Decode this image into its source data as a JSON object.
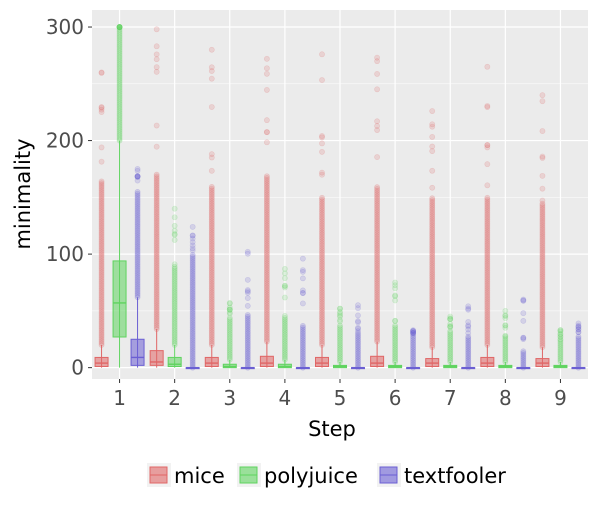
{
  "chart_data": {
    "type": "boxplot",
    "xlabel": "Step",
    "ylabel": "minimality",
    "ylim": [
      -10,
      315
    ],
    "yticks": [
      0,
      100,
      200,
      300
    ],
    "categories": [
      "1",
      "2",
      "3",
      "4",
      "5",
      "6",
      "7",
      "8",
      "9"
    ],
    "grid": true,
    "legend_position": "bottom",
    "colors": {
      "mice": "#e06666",
      "polyjuice": "#5fd35f",
      "textfooler": "#6b5fd3",
      "panel": "#ebebeb",
      "grid": "#ffffff"
    },
    "series": [
      {
        "name": "mice",
        "boxes": [
          {
            "q1": 1,
            "median": 4,
            "q3": 9,
            "whisker_low": 0,
            "whisker_high": 20,
            "outlier_max": 260,
            "dense_max": 165
          },
          {
            "q1": 2,
            "median": 5,
            "q3": 15,
            "whisker_low": 0,
            "whisker_high": 34,
            "outlier_max": 298,
            "dense_max": 170
          },
          {
            "q1": 1,
            "median": 4,
            "q3": 9,
            "whisker_low": 0,
            "whisker_high": 20,
            "outlier_max": 280,
            "dense_max": 160
          },
          {
            "q1": 1,
            "median": 4,
            "q3": 10,
            "whisker_low": 0,
            "whisker_high": 23,
            "outlier_max": 272,
            "dense_max": 170
          },
          {
            "q1": 1,
            "median": 4,
            "q3": 9,
            "whisker_low": 0,
            "whisker_high": 20,
            "outlier_max": 276,
            "dense_max": 150
          },
          {
            "q1": 1,
            "median": 4,
            "q3": 10,
            "whisker_low": 0,
            "whisker_high": 23,
            "outlier_max": 273,
            "dense_max": 160
          },
          {
            "q1": 1,
            "median": 4,
            "q3": 8,
            "whisker_low": 0,
            "whisker_high": 18,
            "outlier_max": 226,
            "dense_max": 150
          },
          {
            "q1": 1,
            "median": 4,
            "q3": 9,
            "whisker_low": 0,
            "whisker_high": 20,
            "outlier_max": 265,
            "dense_max": 150
          },
          {
            "q1": 1,
            "median": 4,
            "q3": 8,
            "whisker_low": 0,
            "whisker_high": 18,
            "outlier_max": 240,
            "dense_max": 145
          }
        ]
      },
      {
        "name": "polyjuice",
        "boxes": [
          {
            "q1": 27,
            "median": 57,
            "q3": 94,
            "whisker_low": 0,
            "whisker_high": 200,
            "outlier_max": 300,
            "dense_max": 300
          },
          {
            "q1": 1,
            "median": 3,
            "q3": 9,
            "whisker_low": 0,
            "whisker_high": 20,
            "outlier_max": 140,
            "dense_max": 90
          },
          {
            "q1": 0,
            "median": 1,
            "q3": 3,
            "whisker_low": 0,
            "whisker_high": 7,
            "outlier_max": 57,
            "dense_max": 45
          },
          {
            "q1": 0,
            "median": 1,
            "q3": 3,
            "whisker_low": 0,
            "whisker_high": 7,
            "outlier_max": 87,
            "dense_max": 45
          },
          {
            "q1": 0,
            "median": 1,
            "q3": 2,
            "whisker_low": 0,
            "whisker_high": 5,
            "outlier_max": 52,
            "dense_max": 38
          },
          {
            "q1": 0,
            "median": 1,
            "q3": 2,
            "whisker_low": 0,
            "whisker_high": 5,
            "outlier_max": 75,
            "dense_max": 38
          },
          {
            "q1": 0,
            "median": 1,
            "q3": 2,
            "whisker_low": 0,
            "whisker_high": 5,
            "outlier_max": 45,
            "dense_max": 33
          },
          {
            "q1": 0,
            "median": 1,
            "q3": 2,
            "whisker_low": 0,
            "whisker_high": 5,
            "outlier_max": 50,
            "dense_max": 28
          },
          {
            "q1": 0,
            "median": 1,
            "q3": 2,
            "whisker_low": 0,
            "whisker_high": 5,
            "outlier_max": 33,
            "dense_max": 25
          }
        ]
      },
      {
        "name": "textfooler",
        "boxes": [
          {
            "q1": 2,
            "median": 9,
            "q3": 25,
            "whisker_low": 0,
            "whisker_high": 62,
            "outlier_max": 175,
            "dense_max": 155
          },
          {
            "q1": 0,
            "median": 0,
            "q3": 0,
            "whisker_low": 0,
            "whisker_high": 0,
            "outlier_max": 124,
            "dense_max": 100
          },
          {
            "q1": 0,
            "median": 0,
            "q3": 0,
            "whisker_low": 0,
            "whisker_high": 0,
            "outlier_max": 102,
            "dense_max": 48
          },
          {
            "q1": 0,
            "median": 0,
            "q3": 0,
            "whisker_low": 0,
            "whisker_high": 0,
            "outlier_max": 96,
            "dense_max": 38
          },
          {
            "q1": 0,
            "median": 0,
            "q3": 0,
            "whisker_low": 0,
            "whisker_high": 0,
            "outlier_max": 55,
            "dense_max": 32
          },
          {
            "q1": 0,
            "median": 0,
            "q3": 0,
            "whisker_low": 0,
            "whisker_high": 0,
            "outlier_max": 33,
            "dense_max": 30
          },
          {
            "q1": 0,
            "median": 0,
            "q3": 0,
            "whisker_low": 0,
            "whisker_high": 0,
            "outlier_max": 54,
            "dense_max": 28
          },
          {
            "q1": 0,
            "median": 0,
            "q3": 0,
            "whisker_low": 0,
            "whisker_high": 0,
            "outlier_max": 60,
            "dense_max": 15
          },
          {
            "q1": 0,
            "median": 0,
            "q3": 0,
            "whisker_low": 0,
            "whisker_high": 0,
            "outlier_max": 39,
            "dense_max": 28
          }
        ]
      }
    ]
  }
}
